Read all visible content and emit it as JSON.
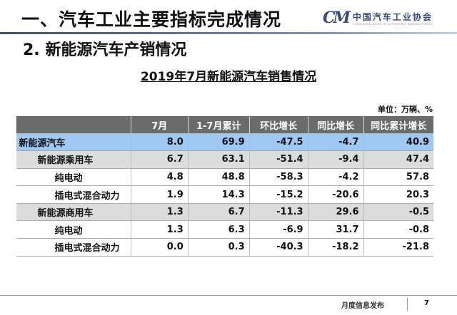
{
  "header": {
    "section_title": "一、汽车工业主要指标完成情况",
    "logo_mark": "CM",
    "logo_cn": "中国汽车工业协会",
    "logo_en": "CHINA ASSOCIATION OF AUTOMOBILE MANUFACTURERS"
  },
  "subtitle": "2. 新能源汽车产销情况",
  "table_title": "2019年7月新能源汽车销售情况",
  "unit": "单位：万辆、%",
  "table": {
    "columns": [
      "",
      "7月",
      "1-7月累计",
      "环比增长",
      "同比增长",
      "同比累计增长"
    ],
    "rows": [
      {
        "level": 0,
        "cells": [
          "新能源汽车",
          "8.0",
          "69.9",
          "-47.5",
          "-4.7",
          "40.9"
        ]
      },
      {
        "level": 1,
        "cells": [
          "新能源乘用车",
          "6.7",
          "63.1",
          "-51.4",
          "-9.4",
          "47.4"
        ]
      },
      {
        "level": 2,
        "cells": [
          "纯电动",
          "4.8",
          "48.8",
          "-58.3",
          "-4.2",
          "57.8"
        ]
      },
      {
        "level": 2,
        "cells": [
          "插电式混合动力",
          "1.9",
          "14.3",
          "-15.2",
          "-20.6",
          "20.3"
        ]
      },
      {
        "level": 1,
        "cells": [
          "新能源商用车",
          "1.3",
          "6.7",
          "-11.3",
          "29.6",
          "-0.5"
        ]
      },
      {
        "level": 2,
        "cells": [
          "纯电动",
          "1.3",
          "6.3",
          "-6.9",
          "31.7",
          "-0.8"
        ]
      },
      {
        "level": 2,
        "cells": [
          "插电式混合动力",
          "0.0",
          "0.3",
          "-40.3",
          "-18.2",
          "-21.8"
        ]
      }
    ]
  },
  "footer": {
    "text": "月度信息发布",
    "page": "7"
  },
  "colors": {
    "highlight_row": "#9fc8f2",
    "subtotal_row": "#dcdcdc",
    "header_bg": "#6b6b6b"
  }
}
